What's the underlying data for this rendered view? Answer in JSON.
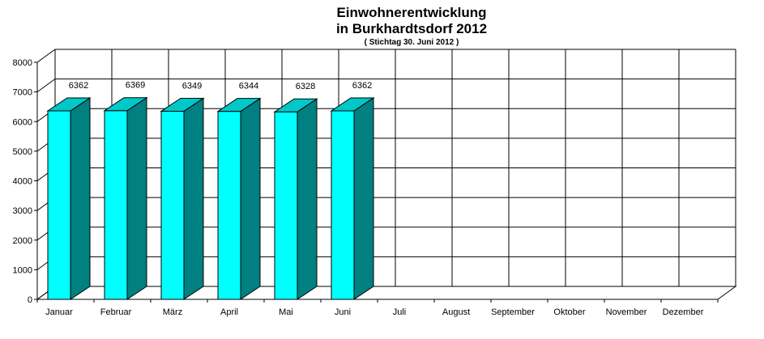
{
  "chart_data": {
    "type": "bar",
    "title": "Einwohnerentwicklung",
    "title_line2": "in Burkhardtsdorf 2012",
    "subtitle": "( Stichtag 30. Juni 2012 )",
    "categories": [
      "Januar",
      "Februar",
      "März",
      "April",
      "Mai",
      "Juni",
      "Juli",
      "August",
      "September",
      "Oktober",
      "November",
      "Dezember"
    ],
    "values": [
      6362,
      6369,
      6349,
      6344,
      6328,
      6362,
      null,
      null,
      null,
      null,
      null,
      null
    ],
    "ylim": [
      0,
      8000
    ],
    "yticks": [
      "0",
      "1000",
      "2000",
      "3000",
      "4000",
      "5000",
      "6000",
      "7000",
      "8000"
    ],
    "grid": true,
    "style": "3d-bar",
    "colors": {
      "front": "#00FFFF",
      "side": "#008080",
      "top": "#00C8C8",
      "outline": "#000000"
    }
  }
}
